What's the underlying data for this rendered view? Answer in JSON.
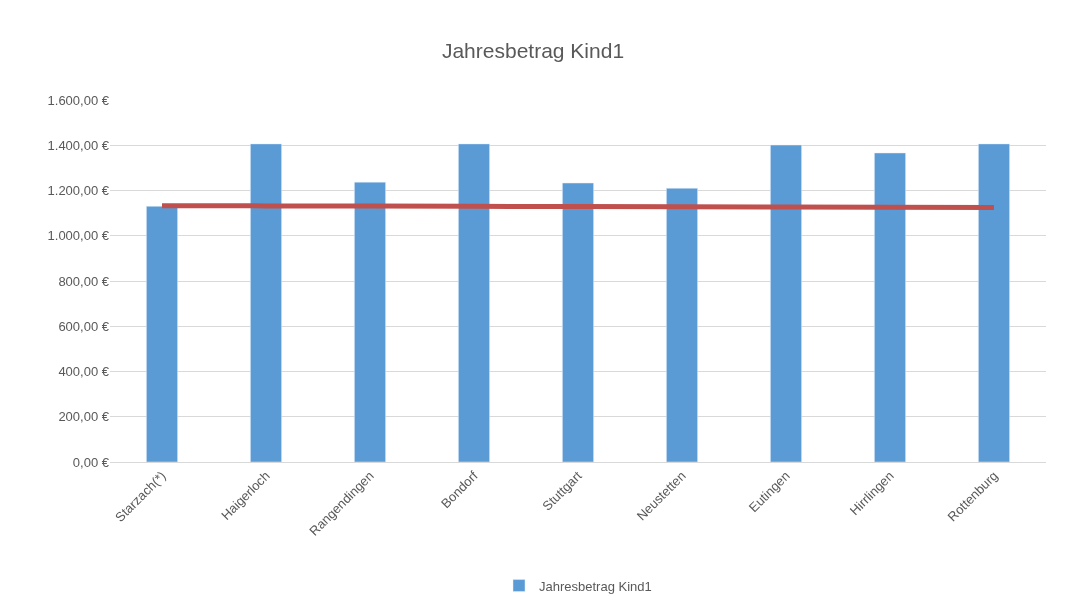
{
  "chart_data": {
    "type": "bar",
    "title": "Jahresbetrag Kind1",
    "categories": [
      "Starzach(*)",
      "Haigerloch",
      "Rangendingen",
      "Bondorf",
      "Stuttgart",
      "Neustetten",
      "Eutingen",
      "Hirrlingen",
      "Rottenburg"
    ],
    "series": [
      {
        "name": "Jahresbetrag Kind1",
        "color": "#5b9bd5",
        "values": [
          1130,
          1406,
          1237,
          1406,
          1233,
          1210,
          1401,
          1366,
          1406
        ]
      },
      {
        "type": "line",
        "color": "#c0504d",
        "values": [
          1133,
          1132,
          1131,
          1130,
          1129,
          1128,
          1127,
          1126,
          1125
        ]
      }
    ],
    "ylim": [
      0,
      1600
    ],
    "yticks": [
      {
        "value": 0,
        "label": "0,00 €"
      },
      {
        "value": 200,
        "label": "200,00 €"
      },
      {
        "value": 400,
        "label": "400,00 €"
      },
      {
        "value": 600,
        "label": "600,00 €"
      },
      {
        "value": 800,
        "label": "800,00 €"
      },
      {
        "value": 1000,
        "label": "1.000,00 €"
      },
      {
        "value": 1200,
        "label": "1.200,00 €"
      },
      {
        "value": 1400,
        "label": "1.400,00 €"
      },
      {
        "value": 1600,
        "label": "1.600,00 €"
      }
    ],
    "grid": "y",
    "legend": "bottom"
  }
}
